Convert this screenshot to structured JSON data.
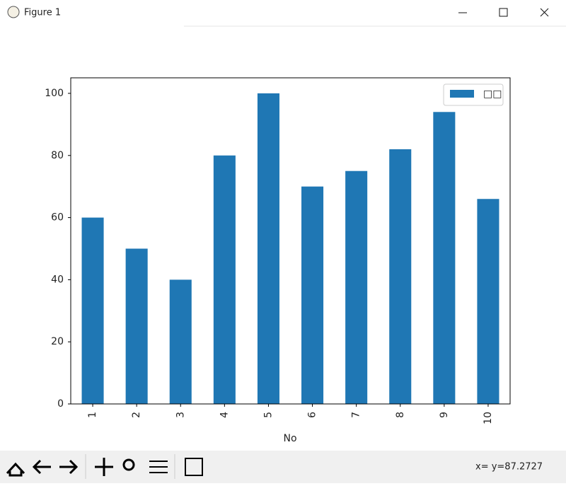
{
  "window": {
    "title": "Figure 1"
  },
  "chart_data": {
    "type": "bar",
    "xlabel": "No",
    "categories": [
      "1",
      "2",
      "3",
      "4",
      "5",
      "6",
      "7",
      "8",
      "9",
      "10"
    ],
    "series": [
      {
        "name": "□□",
        "color": "#1f77b4",
        "values": [
          60,
          50,
          40,
          80,
          100,
          70,
          75,
          82,
          94,
          66
        ]
      }
    ],
    "ylim": [
      0,
      105
    ],
    "yticks": [
      0,
      20,
      40,
      60,
      80,
      100
    ],
    "legend": "upper right"
  },
  "status": {
    "text": "x= y=87.2727"
  }
}
